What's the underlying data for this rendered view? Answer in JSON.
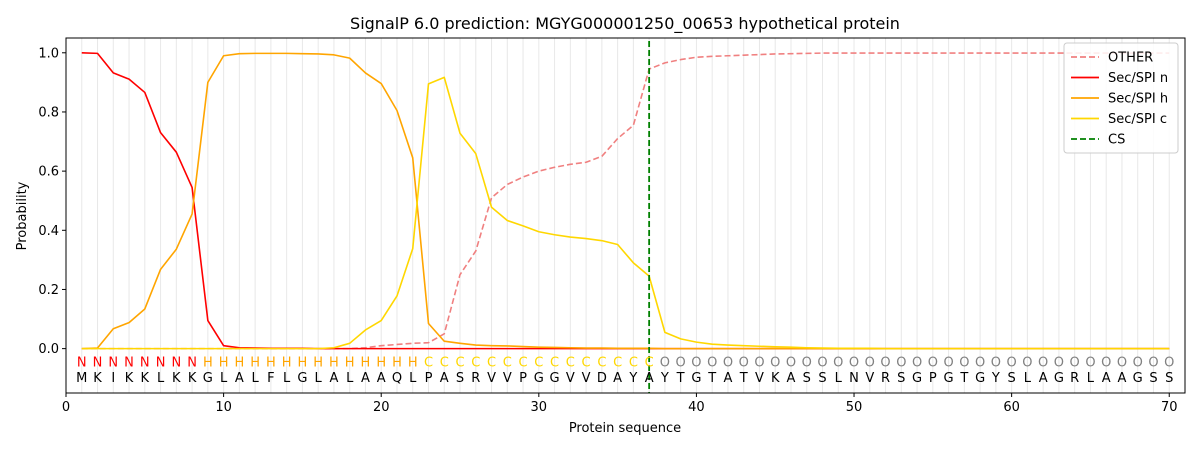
{
  "chart_data": {
    "type": "line",
    "title": "SignalP 6.0 prediction: MGYG000001250_00653 hypothetical protein",
    "xlabel": "Protein sequence",
    "ylabel": "Probability",
    "xlim": [
      0,
      71
    ],
    "ylim": [
      -0.15,
      1.05
    ],
    "xticks": [
      0,
      10,
      20,
      30,
      40,
      50,
      60,
      70
    ],
    "yticks": [
      0.0,
      0.2,
      0.4,
      0.6,
      0.8,
      1.0
    ],
    "grid": "vertical lines at each residue",
    "legend_position": "top-right",
    "cleavage_site": 37,
    "sequence": "MKIKKLKKGLALFLGLALAAQLPASRVVPGGVVDAYAYTGTATVKASSLNVRSGPGTGYSLAGRLAAGSS",
    "labels": "NNNNNNNNHHHHHHHHHHHHHHCCCCCCCCCCCCCCCOOOOOOOOOOOOOOOOOOOOOOOOOOOOOOOOO",
    "label_colors": {
      "N": "#ff0000",
      "H": "#ffa500",
      "C": "#ffd700",
      "O": "#808080"
    },
    "series": [
      {
        "name": "OTHER",
        "color": "#f08080",
        "dash": "dashed",
        "values": [
          0.0,
          0.0,
          0.0,
          0.0,
          0.0,
          0.0,
          0.0,
          0.0,
          0.0,
          0.0,
          0.0,
          0.0,
          0.0,
          0.0,
          0.0,
          0.0,
          0.0,
          0.0,
          0.003,
          0.01,
          0.014,
          0.018,
          0.02,
          0.05,
          0.25,
          0.33,
          0.51,
          0.555,
          0.58,
          0.6,
          0.613,
          0.623,
          0.63,
          0.65,
          0.71,
          0.755,
          0.945,
          0.966,
          0.977,
          0.985,
          0.988,
          0.99,
          0.992,
          0.994,
          0.996,
          0.997,
          0.998,
          0.999,
          0.999,
          0.999,
          0.999,
          0.999,
          0.999,
          0.999,
          0.999,
          0.999,
          0.999,
          0.999,
          0.999,
          0.999,
          0.999,
          0.999,
          0.999,
          0.999,
          0.999,
          0.999,
          0.999,
          0.999,
          0.999,
          0.999
        ]
      },
      {
        "name": "Sec/SPI n",
        "color": "#ff0000",
        "dash": "solid",
        "values": [
          1.0,
          0.998,
          0.932,
          0.911,
          0.866,
          0.73,
          0.664,
          0.545,
          0.095,
          0.01,
          0.003,
          0.002,
          0.001,
          0.001,
          0.001,
          0.0,
          0.0,
          0.0,
          0.0,
          0.0,
          0.0,
          0.0,
          0.0,
          0.0,
          0.0,
          0.0,
          0.0,
          0.0,
          0.0,
          0.0,
          0.0,
          0.0,
          0.0,
          0.0,
          0.0,
          0.0,
          0.0,
          0.0,
          0.0,
          0.0,
          0.0,
          0.0,
          0.0,
          0.0,
          0.0,
          0.0,
          0.0,
          0.0,
          0.0,
          0.0,
          0.0,
          0.0,
          0.0,
          0.0,
          0.0,
          0.0,
          0.0,
          0.0,
          0.0,
          0.0,
          0.0,
          0.0,
          0.0,
          0.0,
          0.0,
          0.0,
          0.0,
          0.0,
          0.0,
          0.0
        ]
      },
      {
        "name": "Sec/SPI h",
        "color": "#ffa500",
        "dash": "solid",
        "values": [
          0.0,
          0.002,
          0.067,
          0.088,
          0.134,
          0.268,
          0.336,
          0.455,
          0.9,
          0.99,
          0.997,
          0.998,
          0.998,
          0.998,
          0.997,
          0.996,
          0.993,
          0.982,
          0.932,
          0.896,
          0.805,
          0.645,
          0.085,
          0.025,
          0.018,
          0.012,
          0.01,
          0.009,
          0.007,
          0.005,
          0.004,
          0.003,
          0.002,
          0.002,
          0.001,
          0.001,
          0.001,
          0.0,
          0.0,
          0.0,
          0.0,
          0.0,
          0.0,
          0.0,
          0.0,
          0.0,
          0.0,
          0.0,
          0.0,
          0.0,
          0.0,
          0.0,
          0.0,
          0.0,
          0.0,
          0.0,
          0.0,
          0.0,
          0.0,
          0.0,
          0.0,
          0.0,
          0.0,
          0.0,
          0.0,
          0.0,
          0.0,
          0.0,
          0.0,
          0.0
        ]
      },
      {
        "name": "Sec/SPI c",
        "color": "#ffd700",
        "dash": "solid",
        "values": [
          0.0,
          0.0,
          0.0,
          0.0,
          0.0,
          0.0,
          0.0,
          0.0,
          0.0,
          0.0,
          0.0,
          0.0,
          0.0,
          0.0,
          0.0,
          0.0,
          0.003,
          0.018,
          0.063,
          0.095,
          0.178,
          0.338,
          0.895,
          0.917,
          0.728,
          0.659,
          0.478,
          0.433,
          0.415,
          0.395,
          0.385,
          0.377,
          0.372,
          0.365,
          0.352,
          0.29,
          0.245,
          0.055,
          0.033,
          0.022,
          0.015,
          0.012,
          0.01,
          0.008,
          0.006,
          0.005,
          0.003,
          0.002,
          0.001,
          0.001,
          0.001,
          0.0,
          0.0,
          0.0,
          0.0,
          0.0,
          0.0,
          0.0,
          0.0,
          0.0,
          0.0,
          0.0,
          0.0,
          0.0,
          0.0,
          0.0,
          0.0,
          0.0,
          0.0,
          0.0
        ]
      }
    ],
    "cs_legend": {
      "name": "CS",
      "color": "#008000",
      "dash": "dashed"
    }
  }
}
